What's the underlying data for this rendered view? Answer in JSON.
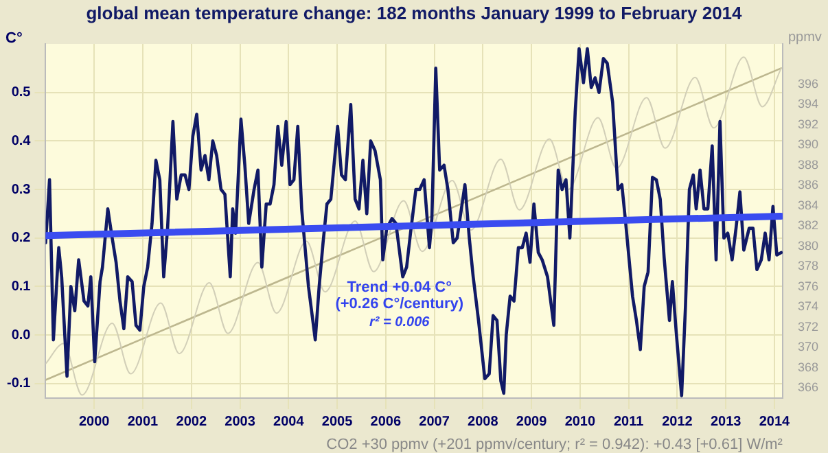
{
  "chart_data": {
    "type": "line",
    "title": "global mean temperature change: 182 months January 1999 to February 2014",
    "ylabel": "C°",
    "y2label": "ppmv",
    "annotations": [
      "Trend +0.04 C° (+0.26 C°/century)",
      "r² = 0.006",
      "CO2 +30 ppmv (+201 ppmv/century; r² = 0.942): +0.43 [+0.61] W/m²"
    ],
    "xlim": [
      1999,
      2014.17
    ],
    "xticks": [
      2000,
      2001,
      2002,
      2003,
      2004,
      2005,
      2006,
      2007,
      2008,
      2009,
      2010,
      2011,
      2012,
      2013,
      2014
    ],
    "ylim": [
      -0.13,
      0.6
    ],
    "yticks": [
      -0.1,
      {
        "value": 0,
        "label": "0.0"
      },
      0.1,
      0.2,
      0.3,
      0.4,
      0.5
    ],
    "y2lim": [
      365,
      400
    ],
    "y2ticks": [
      366,
      368,
      370,
      372,
      374,
      376,
      378,
      380,
      382,
      384,
      386,
      388,
      390,
      392,
      394,
      396
    ],
    "grid": true,
    "legend": false,
    "marker": "none",
    "line_style": "solid",
    "series": [
      {
        "type": "line",
        "color": "#111a66",
        "x": [
          1999.0,
          1999.08,
          1999.16,
          1999.27,
          1999.33,
          1999.44,
          1999.52,
          1999.6,
          1999.68,
          1999.79,
          1999.87,
          1999.93,
          2000.01,
          2000.12,
          2000.17,
          2000.28,
          2000.37,
          2000.45,
          2000.53,
          2000.61,
          2000.69,
          2000.78,
          2000.86,
          2000.94,
          2001.02,
          2001.1,
          2001.19,
          2001.27,
          2001.35,
          2001.43,
          2001.51,
          2001.62,
          2001.7,
          2001.79,
          2001.87,
          2001.95,
          2002.03,
          2002.11,
          2002.2,
          2002.28,
          2002.36,
          2002.44,
          2002.52,
          2002.61,
          2002.69,
          2002.8,
          2002.85,
          2002.91,
          2003.02,
          2003.1,
          2003.18,
          2003.29,
          2003.37,
          2003.45,
          2003.54,
          2003.62,
          2003.7,
          2003.78,
          2003.86,
          2003.95,
          2004.03,
          2004.11,
          2004.19,
          2004.27,
          2004.41,
          2004.55,
          2004.63,
          2004.71,
          2004.79,
          2004.87,
          2005.01,
          2005.09,
          2005.17,
          2005.28,
          2005.37,
          2005.45,
          2005.53,
          2005.61,
          2005.69,
          2005.78,
          2005.89,
          2005.94,
          2006.02,
          2006.13,
          2006.21,
          2006.35,
          2006.43,
          2006.51,
          2006.62,
          2006.7,
          2006.79,
          2006.9,
          2006.95,
          2007.03,
          2007.11,
          2007.2,
          2007.28,
          2007.39,
          2007.47,
          2007.63,
          2007.72,
          2007.8,
          2007.91,
          2008.04,
          2008.13,
          2008.21,
          2008.29,
          2008.37,
          2008.43,
          2008.48,
          2008.56,
          2008.64,
          2008.73,
          2008.81,
          2008.89,
          2008.97,
          2009.05,
          2009.14,
          2009.22,
          2009.33,
          2009.46,
          2009.55,
          2009.63,
          2009.71,
          2009.79,
          2009.9,
          2009.98,
          2010.07,
          2010.15,
          2010.23,
          2010.31,
          2010.39,
          2010.48,
          2010.56,
          2010.67,
          2010.78,
          2010.86,
          2010.94,
          2011.08,
          2011.16,
          2011.24,
          2011.32,
          2011.4,
          2011.49,
          2011.57,
          2011.65,
          2011.73,
          2011.84,
          2011.9,
          2011.98,
          2012.09,
          2012.17,
          2012.25,
          2012.33,
          2012.39,
          2012.47,
          2012.55,
          2012.63,
          2012.72,
          2012.8,
          2012.88,
          2012.96,
          2013.04,
          2013.13,
          2013.21,
          2013.29,
          2013.37,
          2013.48,
          2013.56,
          2013.64,
          2013.73,
          2013.81,
          2013.89,
          2013.97,
          2014.05,
          2014.14
        ],
        "values": [
          0.19,
          0.32,
          -0.01,
          0.18,
          0.12,
          -0.085,
          0.1,
          0.05,
          0.155,
          0.07,
          0.06,
          0.12,
          -0.055,
          0.11,
          0.14,
          0.26,
          0.2,
          0.15,
          0.07,
          0.013,
          0.12,
          0.11,
          0.02,
          0.01,
          0.1,
          0.14,
          0.23,
          0.36,
          0.32,
          0.12,
          0.22,
          0.44,
          0.28,
          0.33,
          0.33,
          0.3,
          0.41,
          0.455,
          0.34,
          0.37,
          0.32,
          0.4,
          0.37,
          0.3,
          0.29,
          0.12,
          0.26,
          0.21,
          0.445,
          0.35,
          0.23,
          0.3,
          0.34,
          0.14,
          0.27,
          0.27,
          0.31,
          0.43,
          0.35,
          0.44,
          0.31,
          0.32,
          0.43,
          0.26,
          0.1,
          -0.01,
          0.1,
          0.19,
          0.27,
          0.28,
          0.43,
          0.33,
          0.32,
          0.475,
          0.28,
          0.26,
          0.36,
          0.25,
          0.4,
          0.38,
          0.32,
          0.155,
          0.22,
          0.24,
          0.23,
          0.12,
          0.14,
          0.21,
          0.3,
          0.3,
          0.32,
          0.18,
          0.24,
          0.55,
          0.34,
          0.35,
          0.3,
          0.19,
          0.2,
          0.31,
          0.2,
          0.12,
          0.03,
          -0.09,
          -0.08,
          0.04,
          0.03,
          -0.095,
          -0.12,
          0.0,
          0.08,
          0.07,
          0.18,
          0.18,
          0.21,
          0.15,
          0.27,
          0.17,
          0.155,
          0.12,
          0.02,
          0.34,
          0.3,
          0.32,
          0.2,
          0.46,
          0.59,
          0.52,
          0.59,
          0.51,
          0.53,
          0.5,
          0.57,
          0.56,
          0.48,
          0.3,
          0.31,
          0.23,
          0.08,
          0.03,
          -0.03,
          0.1,
          0.13,
          0.325,
          0.32,
          0.28,
          0.16,
          0.03,
          0.11,
          0.005,
          -0.125,
          0.06,
          0.3,
          0.33,
          0.26,
          0.34,
          0.26,
          0.26,
          0.39,
          0.155,
          0.44,
          0.2,
          0.21,
          0.155,
          0.22,
          0.295,
          0.175,
          0.22,
          0.22,
          0.135,
          0.155,
          0.21,
          0.155,
          0.265,
          0.165,
          0.17
        ]
      },
      {
        "type": "line",
        "color": "#3a4cf0",
        "x": [
          1999.0,
          2014.14
        ],
        "values": [
          0.205,
          0.245
        ]
      },
      {
        "type": "line",
        "color": "#d2cfb8",
        "axis": "y2",
        "x": [
          1999.0,
          1999.37,
          1999.75,
          2000.37,
          2000.75,
          2001.37,
          2001.75,
          2002.37,
          2002.75,
          2003.37,
          2003.75,
          2004.37,
          2004.75,
          2005.37,
          2005.75,
          2006.37,
          2006.75,
          2007.37,
          2007.75,
          2008.37,
          2008.75,
          2009.37,
          2009.75,
          2010.37,
          2010.75,
          2011.37,
          2011.75,
          2012.37,
          2012.75,
          2013.37,
          2013.75,
          2014.14
        ],
        "values": [
          368.4,
          370.4,
          365.3,
          372.4,
          367.4,
          374.4,
          369.4,
          376.4,
          371.4,
          378.4,
          373.4,
          380.5,
          375.5,
          382.5,
          377.5,
          384.5,
          379.5,
          386.5,
          381.6,
          388.6,
          383.6,
          390.6,
          385.6,
          392.7,
          387.7,
          394.7,
          389.7,
          396.7,
          391.7,
          398.7,
          393.8,
          397.6
        ]
      },
      {
        "type": "line",
        "color": "#bdb78f",
        "axis": "y2",
        "x": [
          1999.0,
          2014.14
        ],
        "values": [
          366.8,
          397.6
        ]
      }
    ]
  }
}
